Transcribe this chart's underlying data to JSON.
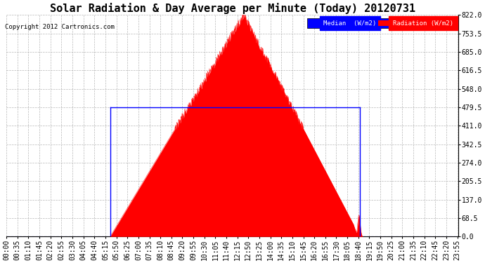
{
  "title": "Solar Radiation & Day Average per Minute (Today) 20120731",
  "copyright": "Copyright 2012 Cartronics.com",
  "yticks": [
    0.0,
    68.5,
    137.0,
    205.5,
    274.0,
    342.5,
    411.0,
    479.5,
    548.0,
    616.5,
    685.0,
    753.5,
    822.0
  ],
  "ymax": 822.0,
  "ymin": 0.0,
  "background_color": "#ffffff",
  "plot_bg_color": "#ffffff",
  "grid_color": "#b0b0b0",
  "radiation_color": "#ff0000",
  "median_color": "#0000ff",
  "median_value": 479.5,
  "sunrise_minute": 330,
  "sunset_minute": 1125,
  "peak_minute": 755,
  "peak_value": 822.0,
  "title_fontsize": 11,
  "tick_fontsize": 7,
  "total_minutes": 1440,
  "tick_step": 35
}
